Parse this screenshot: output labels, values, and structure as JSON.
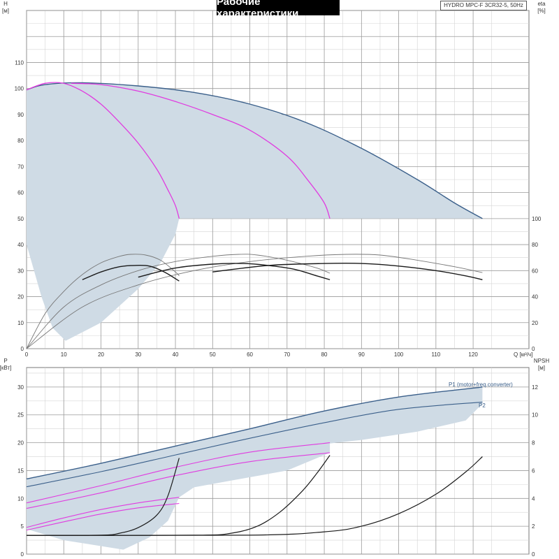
{
  "title": "Рабочие характеристики",
  "model": "HYDRO MPC-F 3CR32-5, 50Hz",
  "colors": {
    "band": "#cfdbe5",
    "envelope": "#3a5f8a",
    "magenta": "#e03ce0",
    "black": "#1a1a1a",
    "grid": "#9a9a9a",
    "gridMinor": "#d4d4d4"
  },
  "chart_data": [
    {
      "type": "line",
      "panel": "top",
      "axes": {
        "x": {
          "label": "Q [м³/ч]",
          "range": [
            0,
            135
          ],
          "ticks": [
            0,
            10,
            20,
            30,
            40,
            50,
            60,
            70,
            80,
            90,
            100,
            110,
            120
          ]
        },
        "y_left": {
          "label_top": "H",
          "label_unit": "[м]",
          "range": [
            0,
            130
          ],
          "ticks": [
            0,
            10,
            20,
            30,
            40,
            50,
            60,
            70,
            80,
            90,
            100,
            110
          ]
        },
        "y_right": {
          "label_top": "eta",
          "label_unit": "[%]",
          "range": [
            0,
            100
          ],
          "ticks": [
            0,
            20,
            40,
            60,
            80,
            100
          ]
        }
      },
      "series": [
        {
          "kind": "head-envelope",
          "points": [
            [
              0,
              99.5
            ],
            [
              5,
              101.5
            ],
            [
              15,
              102.2
            ],
            [
              30,
              101
            ],
            [
              45,
              98.5
            ],
            [
              60,
              94
            ],
            [
              75,
              87
            ],
            [
              90,
              77
            ],
            [
              105,
              65
            ],
            [
              115,
              56
            ],
            [
              122.5,
              50
            ]
          ]
        },
        {
          "kind": "head-1pump",
          "points": [
            [
              0,
              99.5
            ],
            [
              5,
              102
            ],
            [
              10,
              102
            ],
            [
              15,
              99
            ],
            [
              20,
              94
            ],
            [
              25,
              87
            ],
            [
              30,
              79
            ],
            [
              35,
              69
            ],
            [
              38,
              61
            ],
            [
              40,
              55
            ],
            [
              41,
              50
            ]
          ]
        },
        {
          "kind": "head-2pumps",
          "points": [
            [
              12,
              102
            ],
            [
              20,
              101.5
            ],
            [
              30,
              99
            ],
            [
              40,
              95
            ],
            [
              50,
              90
            ],
            [
              60,
              84
            ],
            [
              70,
              74
            ],
            [
              76,
              64
            ],
            [
              80,
              56
            ],
            [
              81.5,
              50
            ]
          ]
        },
        {
          "kind": "eta-thin",
          "points": [
            [
              0,
              0
            ],
            [
              5,
              27
            ],
            [
              10,
              44
            ],
            [
              15,
              57
            ],
            [
              20,
              66
            ],
            [
              25,
              71
            ],
            [
              28,
              72.5
            ],
            [
              32,
              72
            ],
            [
              36,
              68
            ],
            [
              40,
              59
            ],
            [
              41,
              56
            ]
          ]
        },
        {
          "kind": "eta-thin",
          "points": [
            [
              0,
              0
            ],
            [
              10,
              32
            ],
            [
              20,
              49
            ],
            [
              30,
              60
            ],
            [
              40,
              67
            ],
            [
              50,
              71
            ],
            [
              57,
              72.5
            ],
            [
              62,
              72
            ],
            [
              70,
              68
            ],
            [
              78,
              62
            ],
            [
              81.5,
              58
            ]
          ]
        },
        {
          "kind": "eta-thin",
          "points": [
            [
              0,
              0
            ],
            [
              15,
              32
            ],
            [
              30,
              49
            ],
            [
              45,
              60
            ],
            [
              60,
              67
            ],
            [
              75,
              71
            ],
            [
              86,
              72.5
            ],
            [
              95,
              72
            ],
            [
              105,
              68
            ],
            [
              115,
              63
            ],
            [
              122.5,
              58.5
            ]
          ]
        },
        {
          "kind": "eta-bold",
          "points": [
            [
              15,
              53
            ],
            [
              20,
              59
            ],
            [
              25,
              63
            ],
            [
              29,
              64
            ],
            [
              33,
              63.5
            ],
            [
              37,
              59
            ],
            [
              41,
              52
            ]
          ]
        },
        {
          "kind": "eta-bold",
          "points": [
            [
              30,
              55
            ],
            [
              40,
              62
            ],
            [
              50,
              65
            ],
            [
              58,
              65.5
            ],
            [
              65,
              64
            ],
            [
              72,
              61
            ],
            [
              78,
              56
            ],
            [
              81.5,
              53
            ]
          ]
        },
        {
          "kind": "eta-bold",
          "points": [
            [
              50,
              59
            ],
            [
              65,
              64
            ],
            [
              80,
              65.5
            ],
            [
              90,
              65.5
            ],
            [
              100,
              63.5
            ],
            [
              110,
              60
            ],
            [
              118,
              56
            ],
            [
              122.5,
              53
            ]
          ]
        }
      ],
      "band": "shaded operating range"
    },
    {
      "type": "line",
      "panel": "bottom",
      "axes": {
        "x": {
          "range": [
            0,
            135
          ],
          "ticks": [
            0,
            10,
            20,
            30,
            40,
            50,
            60,
            70,
            80,
            90,
            100,
            110,
            120
          ]
        },
        "y_left": {
          "label_top": "P",
          "label_unit": "[кВт]",
          "range": [
            0,
            33.5
          ],
          "ticks": [
            0,
            5,
            10,
            15,
            20,
            25,
            30
          ]
        },
        "y_right": {
          "label_top": "NPSH",
          "label_unit": "[м]",
          "range": [
            0,
            13.4
          ],
          "ticks": [
            0,
            2,
            4,
            6,
            8,
            10,
            12
          ]
        }
      },
      "series": [
        {
          "name": "P1 (motor+freq.converter)",
          "points": [
            [
              0,
              13.5
            ],
            [
              20,
              16.3
            ],
            [
              40,
              19.4
            ],
            [
              60,
              22.5
            ],
            [
              80,
              25.7
            ],
            [
              100,
              28.2
            ],
            [
              122.5,
              30
            ]
          ]
        },
        {
          "name": "P2",
          "points": [
            [
              0,
              12.1
            ],
            [
              20,
              14.8
            ],
            [
              40,
              17.8
            ],
            [
              60,
              20.8
            ],
            [
              80,
              23.6
            ],
            [
              100,
              26
            ],
            [
              122.5,
              27.3
            ]
          ]
        },
        {
          "kind": "P1-1pump",
          "points": [
            [
              0,
              4.8
            ],
            [
              10,
              6.5
            ],
            [
              20,
              8
            ],
            [
              30,
              9.2
            ],
            [
              41,
              10.2
            ]
          ]
        },
        {
          "kind": "P2-1pump",
          "points": [
            [
              0,
              4.3
            ],
            [
              10,
              5.8
            ],
            [
              20,
              7.2
            ],
            [
              30,
              8.3
            ],
            [
              41,
              9.1
            ]
          ]
        },
        {
          "kind": "P1-2pumps",
          "points": [
            [
              0,
              9.2
            ],
            [
              20,
              12.3
            ],
            [
              40,
              15.6
            ],
            [
              60,
              18.3
            ],
            [
              81.5,
              20
            ]
          ]
        },
        {
          "kind": "P2-2pumps",
          "points": [
            [
              0,
              8.2
            ],
            [
              20,
              11
            ],
            [
              40,
              14.1
            ],
            [
              60,
              16.6
            ],
            [
              81.5,
              18.2
            ]
          ]
        },
        {
          "kind": "npsh",
          "points": [
            [
              0,
              1.35
            ],
            [
              20,
              1.36
            ],
            [
              25,
              1.5
            ],
            [
              30,
              1.9
            ],
            [
              35,
              2.8
            ],
            [
              38,
              4.2
            ],
            [
              41,
              6.9
            ]
          ]
        },
        {
          "kind": "npsh",
          "points": [
            [
              0,
              1.35
            ],
            [
              45,
              1.36
            ],
            [
              55,
              1.5
            ],
            [
              62,
              2
            ],
            [
              68,
              3
            ],
            [
              74,
              4.5
            ],
            [
              78,
              5.8
            ],
            [
              81.5,
              7.1
            ]
          ]
        },
        {
          "kind": "npsh",
          "points": [
            [
              0,
              1.35
            ],
            [
              60,
              1.36
            ],
            [
              80,
              1.6
            ],
            [
              90,
              2
            ],
            [
              100,
              2.9
            ],
            [
              110,
              4.3
            ],
            [
              118,
              5.9
            ],
            [
              122.5,
              7
            ]
          ]
        }
      ],
      "legend_labels": [
        "P1 (motor+freq.converter)",
        "P2"
      ]
    }
  ]
}
